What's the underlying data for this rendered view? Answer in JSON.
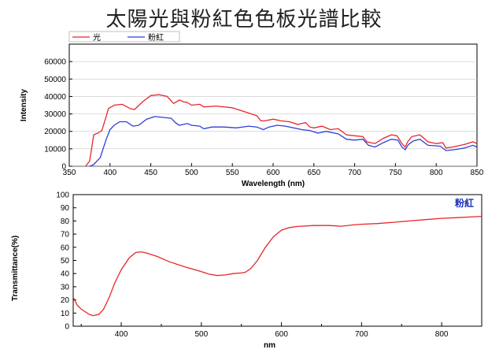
{
  "title": "太陽光與粉紅色色板光譜比較",
  "chart_data": [
    {
      "type": "line",
      "xlabel": "Wavelength (nm)",
      "ylabel": "Intensity",
      "xlim": [
        350,
        850
      ],
      "ylim": [
        0,
        70000
      ],
      "x_ticks": [
        "350",
        "400",
        "450",
        "500",
        "550",
        "600",
        "650",
        "700",
        "750",
        "800",
        "850"
      ],
      "y_ticks": [
        "0",
        "10000",
        "20000",
        "30000",
        "40000",
        "50000",
        "60000"
      ],
      "legend_position": "top-left",
      "series": [
        {
          "name": "光",
          "color": "#e8262d",
          "points": [
            [
              370,
              0
            ],
            [
              375,
              3000
            ],
            [
              378,
              12000
            ],
            [
              380,
              18000
            ],
            [
              385,
              19000
            ],
            [
              390,
              20500
            ],
            [
              395,
              28000
            ],
            [
              398,
              33000
            ],
            [
              405,
              35000
            ],
            [
              415,
              35500
            ],
            [
              425,
              33000
            ],
            [
              430,
              32500
            ],
            [
              440,
              37000
            ],
            [
              450,
              40500
            ],
            [
              460,
              41000
            ],
            [
              470,
              40000
            ],
            [
              478,
              36000
            ],
            [
              485,
              38000
            ],
            [
              490,
              37000
            ],
            [
              495,
              36500
            ],
            [
              500,
              35000
            ],
            [
              510,
              35500
            ],
            [
              515,
              34000
            ],
            [
              530,
              34500
            ],
            [
              550,
              33500
            ],
            [
              560,
              32000
            ],
            [
              570,
              30500
            ],
            [
              580,
              29000
            ],
            [
              585,
              26000
            ],
            [
              590,
              26000
            ],
            [
              600,
              27000
            ],
            [
              610,
              26000
            ],
            [
              620,
              25500
            ],
            [
              630,
              24000
            ],
            [
              640,
              25000
            ],
            [
              645,
              22500
            ],
            [
              650,
              22000
            ],
            [
              660,
              23000
            ],
            [
              670,
              21000
            ],
            [
              680,
              21500
            ],
            [
              690,
              18000
            ],
            [
              700,
              17500
            ],
            [
              710,
              17000
            ],
            [
              715,
              14000
            ],
            [
              725,
              13000
            ],
            [
              735,
              16000
            ],
            [
              745,
              18000
            ],
            [
              752,
              17500
            ],
            [
              758,
              13000
            ],
            [
              762,
              11000
            ],
            [
              765,
              14000
            ],
            [
              770,
              17000
            ],
            [
              780,
              18000
            ],
            [
              790,
              14000
            ],
            [
              800,
              13000
            ],
            [
              808,
              13500
            ],
            [
              812,
              10500
            ],
            [
              820,
              11000
            ],
            [
              835,
              12500
            ],
            [
              845,
              14000
            ],
            [
              850,
              13000
            ]
          ]
        },
        {
          "name": "粉紅",
          "color": "#2e3fd6",
          "points": [
            [
              375,
              0
            ],
            [
              380,
              1000
            ],
            [
              388,
              5000
            ],
            [
              395,
              15000
            ],
            [
              400,
              21000
            ],
            [
              405,
              23500
            ],
            [
              412,
              25500
            ],
            [
              420,
              25500
            ],
            [
              428,
              23000
            ],
            [
              435,
              23500
            ],
            [
              445,
              27000
            ],
            [
              455,
              28500
            ],
            [
              465,
              28000
            ],
            [
              475,
              27500
            ],
            [
              480,
              25000
            ],
            [
              485,
              23500
            ],
            [
              490,
              24000
            ],
            [
              495,
              24500
            ],
            [
              500,
              23500
            ],
            [
              510,
              23000
            ],
            [
              515,
              21500
            ],
            [
              525,
              22500
            ],
            [
              540,
              22500
            ],
            [
              555,
              22000
            ],
            [
              570,
              23000
            ],
            [
              580,
              22500
            ],
            [
              588,
              21000
            ],
            [
              595,
              22500
            ],
            [
              605,
              23500
            ],
            [
              615,
              23000
            ],
            [
              625,
              22000
            ],
            [
              635,
              21000
            ],
            [
              645,
              20500
            ],
            [
              655,
              19000
            ],
            [
              665,
              20000
            ],
            [
              680,
              18500
            ],
            [
              690,
              15500
            ],
            [
              700,
              15000
            ],
            [
              710,
              15500
            ],
            [
              717,
              12000
            ],
            [
              725,
              11000
            ],
            [
              735,
              13500
            ],
            [
              745,
              15500
            ],
            [
              753,
              15000
            ],
            [
              758,
              11000
            ],
            [
              762,
              9500
            ],
            [
              766,
              12500
            ],
            [
              772,
              14500
            ],
            [
              780,
              15500
            ],
            [
              790,
              12000
            ],
            [
              805,
              11500
            ],
            [
              812,
              9000
            ],
            [
              822,
              9500
            ],
            [
              835,
              10500
            ],
            [
              845,
              12000
            ],
            [
              850,
              11000
            ]
          ]
        }
      ]
    },
    {
      "type": "line",
      "xlabel": "nm",
      "ylabel": "Transmittance(%)",
      "xlim": [
        340,
        850
      ],
      "ylim": [
        0,
        100
      ],
      "x_ticks": [
        "400",
        "500",
        "600",
        "700",
        "800"
      ],
      "y_ticks": [
        "0",
        "10",
        "20",
        "30",
        "40",
        "50",
        "60",
        "70",
        "80",
        "90",
        "100"
      ],
      "annotation": "粉紅",
      "series": [
        {
          "color": "#e8262d",
          "points": [
            [
              340,
              22
            ],
            [
              345,
              16
            ],
            [
              350,
              13
            ],
            [
              360,
              9
            ],
            [
              365,
              8
            ],
            [
              372,
              9
            ],
            [
              378,
              13
            ],
            [
              385,
              22
            ],
            [
              392,
              33
            ],
            [
              400,
              43
            ],
            [
              410,
              52
            ],
            [
              418,
              56
            ],
            [
              425,
              56.5
            ],
            [
              432,
              55.5
            ],
            [
              445,
              53
            ],
            [
              460,
              49
            ],
            [
              480,
              45
            ],
            [
              500,
              41.5
            ],
            [
              510,
              39.5
            ],
            [
              520,
              38.5
            ],
            [
              530,
              39
            ],
            [
              540,
              40
            ],
            [
              550,
              40.5
            ],
            [
              555,
              41
            ],
            [
              562,
              44
            ],
            [
              570,
              50
            ],
            [
              580,
              60
            ],
            [
              590,
              68
            ],
            [
              600,
              73
            ],
            [
              610,
              75
            ],
            [
              620,
              75.8
            ],
            [
              640,
              76.5
            ],
            [
              660,
              76.5
            ],
            [
              675,
              76
            ],
            [
              690,
              77
            ],
            [
              700,
              77.5
            ],
            [
              720,
              78
            ],
            [
              740,
              79
            ],
            [
              760,
              80
            ],
            [
              780,
              81
            ],
            [
              800,
              82
            ],
            [
              820,
              82.5
            ],
            [
              835,
              83
            ],
            [
              850,
              83.5
            ]
          ]
        }
      ]
    }
  ]
}
